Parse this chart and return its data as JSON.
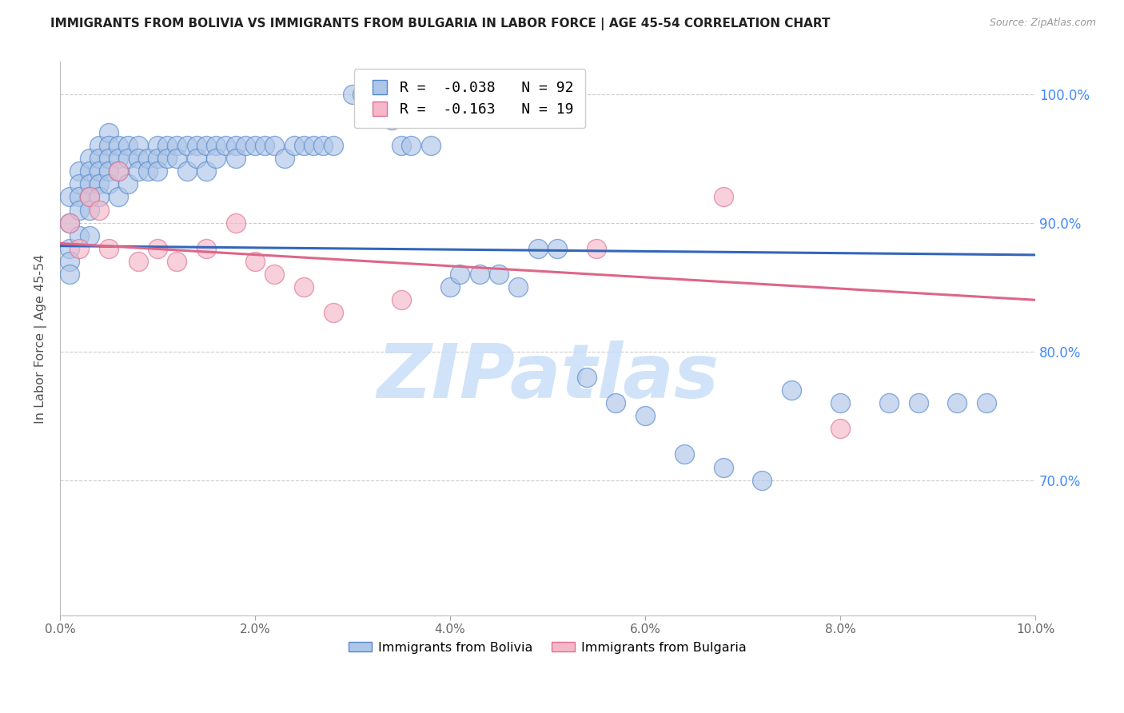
{
  "title": "IMMIGRANTS FROM BOLIVIA VS IMMIGRANTS FROM BULGARIA IN LABOR FORCE | AGE 45-54 CORRELATION CHART",
  "source": "Source: ZipAtlas.com",
  "ylabel": "In Labor Force | Age 45-54",
  "xlim": [
    0.0,
    0.1
  ],
  "ylim": [
    0.595,
    1.025
  ],
  "bolivia_color": "#aec6e8",
  "bulgaria_color": "#f4b8c8",
  "bolivia_edge_color": "#5588cc",
  "bulgaria_edge_color": "#e07090",
  "bolivia_line_color": "#3366bb",
  "bulgaria_line_color": "#dd6688",
  "bolivia_R": -0.038,
  "bolivia_N": 92,
  "bulgaria_R": -0.163,
  "bulgaria_N": 19,
  "watermark_text": "ZIPatlas",
  "watermark_color": "#cce0f8",
  "ytick_labels_right": [
    "100.0%",
    "90.0%",
    "80.0%",
    "70.0%"
  ],
  "ytick_vals": [
    1.0,
    0.9,
    0.8,
    0.7
  ],
  "xtick_labels": [
    "0.0%",
    "2.0%",
    "4.0%",
    "6.0%",
    "8.0%",
    "10.0%"
  ],
  "xtick_vals": [
    0.0,
    0.02,
    0.04,
    0.06,
    0.08,
    0.1
  ],
  "bolivia_line_x": [
    0.0,
    0.1
  ],
  "bolivia_line_y": [
    0.882,
    0.875
  ],
  "bulgaria_line_x": [
    0.0,
    0.1
  ],
  "bulgaria_line_y": [
    0.884,
    0.84
  ],
  "bolivia_x": [
    0.001,
    0.001,
    0.001,
    0.001,
    0.001,
    0.002,
    0.002,
    0.002,
    0.002,
    0.002,
    0.003,
    0.003,
    0.003,
    0.003,
    0.003,
    0.003,
    0.004,
    0.004,
    0.004,
    0.004,
    0.004,
    0.005,
    0.005,
    0.005,
    0.005,
    0.005,
    0.006,
    0.006,
    0.006,
    0.006,
    0.007,
    0.007,
    0.007,
    0.008,
    0.008,
    0.008,
    0.009,
    0.009,
    0.01,
    0.01,
    0.01,
    0.011,
    0.011,
    0.012,
    0.012,
    0.013,
    0.013,
    0.014,
    0.014,
    0.015,
    0.015,
    0.016,
    0.016,
    0.017,
    0.018,
    0.018,
    0.019,
    0.02,
    0.021,
    0.022,
    0.023,
    0.024,
    0.025,
    0.026,
    0.027,
    0.028,
    0.03,
    0.031,
    0.032,
    0.034,
    0.035,
    0.036,
    0.038,
    0.04,
    0.041,
    0.043,
    0.045,
    0.047,
    0.049,
    0.051,
    0.054,
    0.057,
    0.06,
    0.064,
    0.068,
    0.072,
    0.075,
    0.08,
    0.085,
    0.088,
    0.092,
    0.095
  ],
  "bolivia_y": [
    0.92,
    0.9,
    0.88,
    0.87,
    0.86,
    0.94,
    0.93,
    0.92,
    0.91,
    0.89,
    0.95,
    0.94,
    0.93,
    0.92,
    0.91,
    0.89,
    0.96,
    0.95,
    0.94,
    0.93,
    0.92,
    0.97,
    0.96,
    0.95,
    0.94,
    0.93,
    0.96,
    0.95,
    0.94,
    0.92,
    0.96,
    0.95,
    0.93,
    0.96,
    0.95,
    0.94,
    0.95,
    0.94,
    0.96,
    0.95,
    0.94,
    0.96,
    0.95,
    0.96,
    0.95,
    0.96,
    0.94,
    0.96,
    0.95,
    0.94,
    0.96,
    0.96,
    0.95,
    0.96,
    0.96,
    0.95,
    0.96,
    0.96,
    0.96,
    0.96,
    0.95,
    0.96,
    0.96,
    0.96,
    0.96,
    0.96,
    1.0,
    1.0,
    1.0,
    0.98,
    0.96,
    0.96,
    0.96,
    0.85,
    0.86,
    0.86,
    0.86,
    0.85,
    0.88,
    0.88,
    0.78,
    0.76,
    0.75,
    0.72,
    0.71,
    0.7,
    0.77,
    0.76,
    0.76,
    0.76,
    0.76,
    0.76
  ],
  "bulgaria_x": [
    0.001,
    0.002,
    0.003,
    0.004,
    0.005,
    0.006,
    0.008,
    0.01,
    0.012,
    0.015,
    0.018,
    0.02,
    0.022,
    0.025,
    0.028,
    0.035,
    0.055,
    0.068,
    0.08
  ],
  "bulgaria_y": [
    0.9,
    0.88,
    0.92,
    0.91,
    0.88,
    0.94,
    0.87,
    0.88,
    0.87,
    0.88,
    0.9,
    0.87,
    0.86,
    0.85,
    0.83,
    0.84,
    0.88,
    0.92,
    0.74
  ]
}
